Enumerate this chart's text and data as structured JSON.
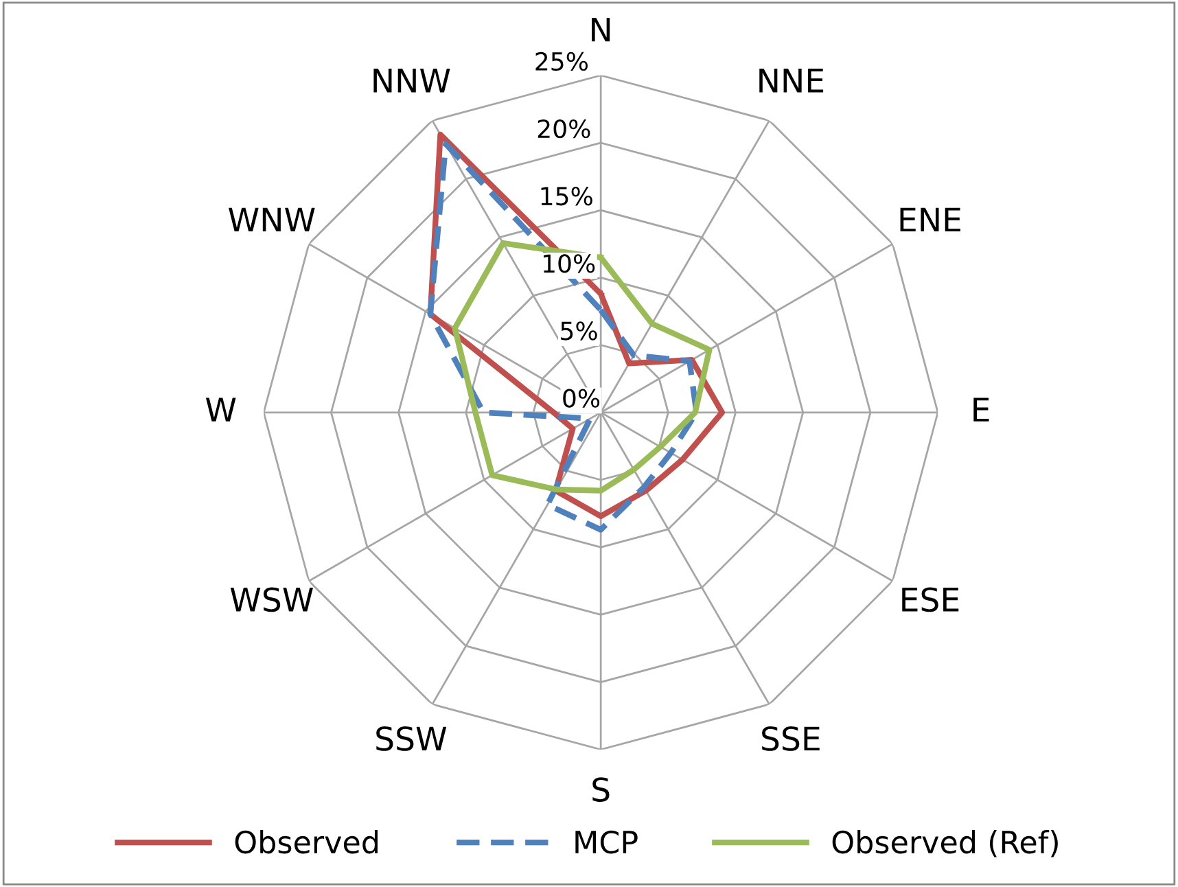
{
  "chart_data": {
    "type": "radar",
    "categories": [
      "N",
      "NNE",
      "ENE",
      "E",
      "ESE",
      "SSE",
      "S",
      "SSW",
      "WSW",
      "W",
      "WNW",
      "NNW"
    ],
    "series": [
      {
        "name": "Observed",
        "color": "#c0504d",
        "line_style": "solid",
        "values": [
          8.8,
          4.2,
          7.8,
          9.0,
          7.0,
          6.7,
          7.7,
          6.7,
          2.4,
          3.5,
          14.6,
          23.8
        ]
      },
      {
        "name": "MCP",
        "color": "#4f81bd",
        "line_style": "dashed",
        "values": [
          7.6,
          4.9,
          7.6,
          7.1,
          6.0,
          6.4,
          8.7,
          7.9,
          0.9,
          8.7,
          14.6,
          23.0
        ]
      },
      {
        "name": "Observed (Ref)",
        "color": "#9bbb59",
        "line_style": "solid",
        "values": [
          11.5,
          7.6,
          9.3,
          7.0,
          5.1,
          4.9,
          5.8,
          6.6,
          9.3,
          9.3,
          12.5,
          14.5
        ]
      }
    ],
    "ylim": [
      0,
      25
    ],
    "yticks": [
      {
        "value": 0,
        "label": "0%"
      },
      {
        "value": 5,
        "label": "5%"
      },
      {
        "value": 10,
        "label": "10%"
      },
      {
        "value": 15,
        "label": "15%"
      },
      {
        "value": 20,
        "label": "20%"
      },
      {
        "value": 25,
        "label": "25%"
      }
    ],
    "grid": true,
    "legend": "bottom",
    "marker": "none"
  }
}
